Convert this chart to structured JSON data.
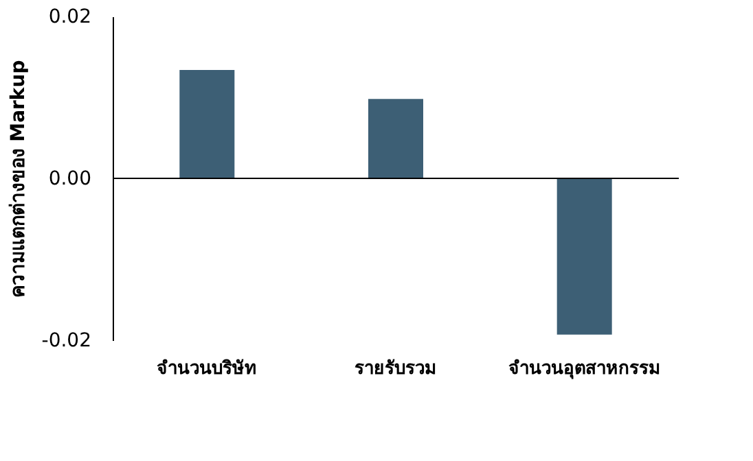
{
  "chart_data": {
    "type": "bar",
    "ylabel": "ความแตกต่างของ Markup",
    "categories": [
      "จำนวนบริษัท",
      "รายรับรวม",
      "จำนวนอุตสาหกรรม"
    ],
    "values": [
      0.0134,
      0.0098,
      -0.0193
    ],
    "color": "#3d5f75",
    "ylim": [
      -0.02,
      0.02
    ],
    "yticks": [
      {
        "value": -0.02,
        "label": "-0.02"
      },
      {
        "value": 0,
        "label": "0.00"
      },
      0.02
    ],
    "ref_lines": [
      {
        "axis": "y",
        "value": 0,
        "color": "#000000"
      }
    ]
  }
}
